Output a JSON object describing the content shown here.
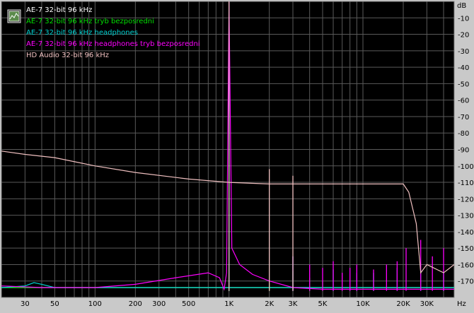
{
  "chart_data": {
    "type": "line",
    "title": "",
    "xlabel": "",
    "ylabel": "",
    "x_unit": "Hz",
    "y_unit": "dB",
    "x_scale": "log",
    "xlim": [
      20,
      48000
    ],
    "ylim": [
      -180,
      0
    ],
    "grid": true,
    "legend_position": "top-left",
    "x_ticks": [
      {
        "value": 30,
        "label": "30"
      },
      {
        "value": 50,
        "label": "50"
      },
      {
        "value": 100,
        "label": "100"
      },
      {
        "value": 200,
        "label": "200"
      },
      {
        "value": 300,
        "label": "300"
      },
      {
        "value": 500,
        "label": "500"
      },
      {
        "value": 1000,
        "label": "1K"
      },
      {
        "value": 2000,
        "label": "2K"
      },
      {
        "value": 3000,
        "label": "3K"
      },
      {
        "value": 5000,
        "label": "5K"
      },
      {
        "value": 10000,
        "label": "10K"
      },
      {
        "value": 20000,
        "label": "20K"
      },
      {
        "value": 30000,
        "label": "30K"
      }
    ],
    "y_ticks": [
      -10,
      -20,
      -30,
      -40,
      -50,
      -60,
      -70,
      -80,
      -90,
      -100,
      -110,
      -120,
      -130,
      -140,
      -150,
      -160,
      -170
    ],
    "series": [
      {
        "name": "AE-7 32-bit 96 kHz",
        "color": "#ffffff",
        "points": [
          [
            20,
            -174
          ],
          [
            1000,
            -174
          ],
          [
            20000,
            -174
          ],
          [
            48000,
            -174
          ]
        ],
        "peaks": [
          [
            1000,
            0
          ]
        ]
      },
      {
        "name": "AE-7 32-bit 96 kHz tryb bezposredni",
        "color": "#00e000",
        "points": [
          [
            20,
            -174
          ],
          [
            48000,
            -174
          ]
        ],
        "peaks": [
          [
            1000,
            0
          ],
          [
            2000,
            -170
          ],
          [
            3000,
            -164
          ],
          [
            4000,
            -168
          ],
          [
            5000,
            -170
          ]
        ]
      },
      {
        "name": "AE-7 32-bit 96 kHz headphones",
        "color": "#00d0d0",
        "points": [
          [
            20,
            -174
          ],
          [
            30,
            -173
          ],
          [
            35,
            -171
          ],
          [
            40,
            -172
          ],
          [
            50,
            -174
          ],
          [
            48000,
            -174
          ]
        ],
        "peaks": [
          [
            1000,
            0
          ],
          [
            3000,
            -155
          ],
          [
            6000,
            -163
          ],
          [
            9000,
            -165
          ],
          [
            12000,
            -165
          ],
          [
            18000,
            -162
          ],
          [
            27000,
            -163
          ],
          [
            40000,
            -165
          ]
        ]
      },
      {
        "name": "AE-7 32-bit 96 kHz headphones tryb bezposredni",
        "color": "#ff00ff",
        "points": [
          [
            20,
            -173
          ],
          [
            40,
            -174
          ],
          [
            100,
            -174
          ],
          [
            200,
            -172
          ],
          [
            400,
            -168
          ],
          [
            700,
            -165
          ],
          [
            850,
            -168
          ],
          [
            920,
            -175
          ],
          [
            960,
            -165
          ],
          [
            1000,
            0
          ],
          [
            1050,
            -150
          ],
          [
            1200,
            -160
          ],
          [
            1500,
            -166
          ],
          [
            2000,
            -170
          ],
          [
            3000,
            -174
          ],
          [
            5000,
            -175
          ],
          [
            48000,
            -175
          ]
        ],
        "peaks": [
          [
            3000,
            -155
          ],
          [
            4000,
            -160
          ],
          [
            5000,
            -162
          ],
          [
            6000,
            -158
          ],
          [
            7000,
            -165
          ],
          [
            8000,
            -162
          ],
          [
            9000,
            -160
          ],
          [
            12000,
            -163
          ],
          [
            15000,
            -160
          ],
          [
            18000,
            -158
          ],
          [
            21000,
            -150
          ],
          [
            27000,
            -145
          ],
          [
            33000,
            -155
          ],
          [
            40000,
            -150
          ]
        ]
      },
      {
        "name": "HD Audio 32-bit 96 kHz",
        "color": "#f0c0c0",
        "points": [
          [
            20,
            -91
          ],
          [
            30,
            -93
          ],
          [
            50,
            -95
          ],
          [
            100,
            -100
          ],
          [
            200,
            -104
          ],
          [
            500,
            -108
          ],
          [
            1000,
            -110
          ],
          [
            2000,
            -111
          ],
          [
            5000,
            -111
          ],
          [
            10000,
            -111
          ],
          [
            20000,
            -111
          ],
          [
            22000,
            -116
          ],
          [
            25000,
            -135
          ],
          [
            27000,
            -165
          ],
          [
            30000,
            -160
          ],
          [
            40000,
            -165
          ],
          [
            48000,
            -160
          ]
        ],
        "peaks": [
          [
            1000,
            0
          ],
          [
            2000,
            -102
          ],
          [
            3000,
            -106
          ]
        ]
      }
    ]
  }
}
